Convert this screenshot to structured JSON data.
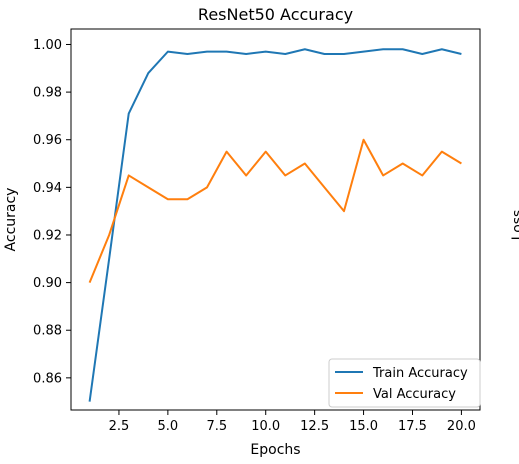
{
  "chart_data": {
    "type": "line",
    "title": "ResNet50 Accuracy",
    "xlabel": "Epochs",
    "ylabel": "Accuracy",
    "x": [
      1,
      2,
      3,
      4,
      5,
      6,
      7,
      8,
      9,
      10,
      11,
      12,
      13,
      14,
      15,
      16,
      17,
      18,
      19,
      20
    ],
    "xlim": [
      0.05,
      20.95
    ],
    "ylim": [
      0.8465,
      1.0065
    ],
    "xticks": [
      2.5,
      5.0,
      7.5,
      10.0,
      12.5,
      15.0,
      17.5,
      20.0
    ],
    "xtick_labels": [
      "2.5",
      "5.0",
      "7.5",
      "10.0",
      "12.5",
      "15.0",
      "17.5",
      "20.0"
    ],
    "yticks": [
      0.86,
      0.88,
      0.9,
      0.92,
      0.94,
      0.96,
      0.98,
      1.0
    ],
    "ytick_labels": [
      "0.86",
      "0.88",
      "0.90",
      "0.92",
      "0.94",
      "0.96",
      "0.98",
      "1.00"
    ],
    "grid": false,
    "legend_position": "lower-right",
    "series": [
      {
        "name": "Train Accuracy",
        "color": "#1f77b4",
        "values": [
          0.85,
          0.91,
          0.971,
          0.988,
          0.997,
          0.996,
          0.997,
          0.997,
          0.996,
          0.997,
          0.996,
          0.998,
          0.996,
          0.996,
          0.997,
          0.998,
          0.998,
          0.996,
          0.998,
          0.996
        ]
      },
      {
        "name": "Val Accuracy",
        "color": "#ff7f0e",
        "values": [
          0.9,
          0.92,
          0.945,
          0.94,
          0.935,
          0.935,
          0.94,
          0.955,
          0.945,
          0.955,
          0.945,
          0.95,
          0.94,
          0.93,
          0.96,
          0.945,
          0.95,
          0.945,
          0.955,
          0.95
        ]
      }
    ],
    "right_edge_text": "Loss"
  }
}
